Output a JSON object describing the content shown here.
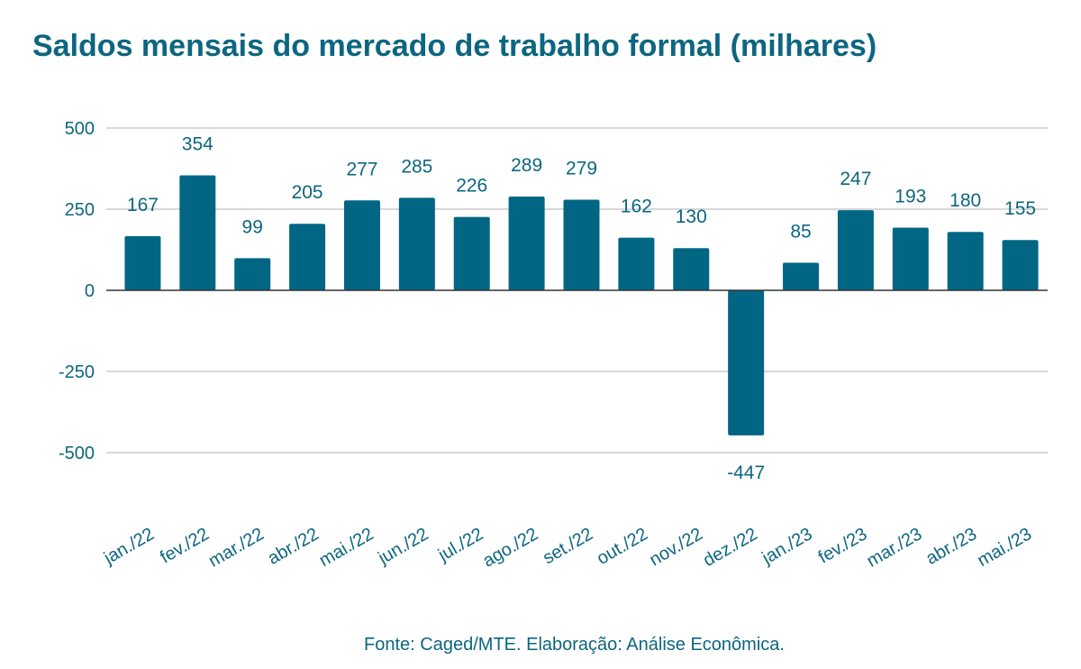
{
  "chart_data": {
    "type": "bar",
    "title": "Saldos mensais do mercado de trabalho formal (milhares)",
    "xlabel": "",
    "ylabel": "",
    "categories": [
      "jan./22",
      "fev./22",
      "mar./22",
      "abr./22",
      "mai./22",
      "jun./22",
      "jul./22",
      "ago./22",
      "set./22",
      "out./22",
      "nov./22",
      "dez./22",
      "jan./23",
      "fev./23",
      "mar./23",
      "abr./23",
      "mai./23"
    ],
    "values": [
      167,
      354,
      99,
      205,
      277,
      285,
      226,
      289,
      279,
      162,
      130,
      -447,
      85,
      247,
      193,
      180,
      155
    ],
    "ylim": [
      -500,
      500
    ],
    "yticks": [
      500,
      250,
      0,
      -250,
      -500
    ],
    "grid": true,
    "legend": "none",
    "bar_color": "#006684",
    "text_color": "#0d6681",
    "grid_color": "#cccccc",
    "zero_line_color": "#333333"
  },
  "footer": {
    "source": "Fonte: Caged/MTE. Elaboração: Análise Econômica."
  }
}
